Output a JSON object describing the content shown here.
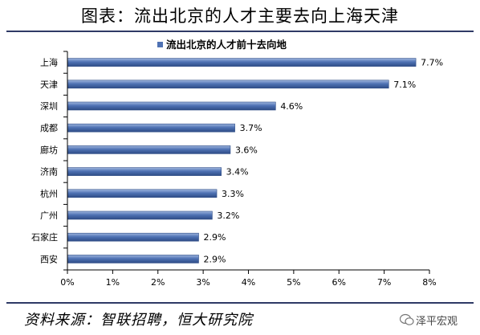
{
  "header": {
    "title": "图表：流出北京的人才主要去向上海天津"
  },
  "footer": {
    "source": "资料来源：智联招聘，恒大研究院",
    "watermark": "泽平宏观"
  },
  "colors": {
    "bar": "#4f72b4",
    "bar_dark": "#2e4c86",
    "bar_light": "#9fb6de",
    "rule": "#2f3a66",
    "axis": "#000000"
  },
  "chart_data": {
    "type": "bar",
    "orientation": "horizontal",
    "categories": [
      "上海",
      "天津",
      "深圳",
      "成都",
      "廊坊",
      "济南",
      "杭州",
      "广州",
      "石家庄",
      "西安"
    ],
    "series": [
      {
        "name": "流出北京的人才前十去向地",
        "values": [
          7.7,
          7.1,
          4.6,
          3.7,
          3.6,
          3.4,
          3.3,
          3.2,
          2.9,
          2.9
        ]
      }
    ],
    "value_labels": [
      "7.7%",
      "7.1%",
      "4.6%",
      "3.7%",
      "3.6%",
      "3.4%",
      "3.3%",
      "3.2%",
      "2.9%",
      "2.9%"
    ],
    "xlim": [
      0,
      8
    ],
    "x_ticks": [
      "0%",
      "1%",
      "2%",
      "3%",
      "4%",
      "5%",
      "6%",
      "7%",
      "8%"
    ],
    "grid": false,
    "legend_position": "top"
  }
}
